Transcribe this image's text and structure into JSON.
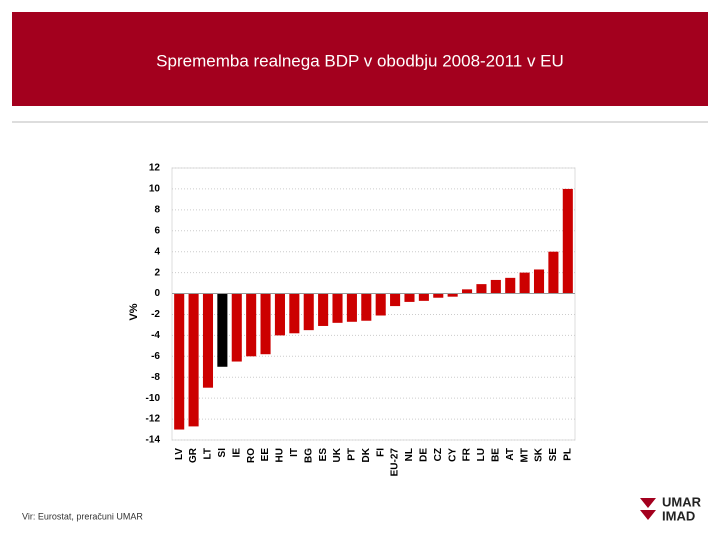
{
  "header": {
    "title": "Sprememba realnega BDP v obodbju 2008-2011 v EU"
  },
  "chart_data": {
    "type": "bar",
    "y_label": "V%",
    "categories": [
      "LV",
      "GR",
      "LT",
      "SI",
      "IE",
      "RO",
      "EE",
      "HU",
      "IT",
      "BG",
      "ES",
      "UK",
      "PT",
      "DK",
      "FI",
      "EU-27",
      "NL",
      "DE",
      "CZ",
      "CY",
      "FR",
      "LU",
      "BE",
      "AT",
      "MT",
      "SK",
      "SE",
      "PL"
    ],
    "values": [
      -13,
      -12.7,
      -9,
      -7,
      -6.5,
      -6,
      -5.8,
      -4,
      -3.8,
      -3.5,
      -3.1,
      -2.8,
      -2.7,
      -2.6,
      -2.1,
      -1.2,
      -0.8,
      -0.7,
      -0.4,
      -0.3,
      0.4,
      0.9,
      1.3,
      1.5,
      2,
      2.3,
      4,
      10
    ],
    "colors": [
      "#cc0000",
      "#cc0000",
      "#cc0000",
      "#000000",
      "#cc0000",
      "#cc0000",
      "#cc0000",
      "#cc0000",
      "#cc0000",
      "#cc0000",
      "#cc0000",
      "#cc0000",
      "#cc0000",
      "#cc0000",
      "#cc0000",
      "#cc0000",
      "#cc0000",
      "#cc0000",
      "#cc0000",
      "#cc0000",
      "#cc0000",
      "#cc0000",
      "#cc0000",
      "#cc0000",
      "#cc0000",
      "#cc0000",
      "#cc0000",
      "#cc0000"
    ],
    "ylim": [
      -14,
      12
    ],
    "yticks": [
      -14,
      -12,
      -10,
      -8,
      -6,
      -4,
      -2,
      0,
      2,
      4,
      6,
      8,
      10,
      12
    ],
    "grid": true
  },
  "footer": {
    "source": "Vir: Eurostat, preračuni UMAR"
  },
  "logo": {
    "line1": "UMAR",
    "line2": "IMAD"
  }
}
